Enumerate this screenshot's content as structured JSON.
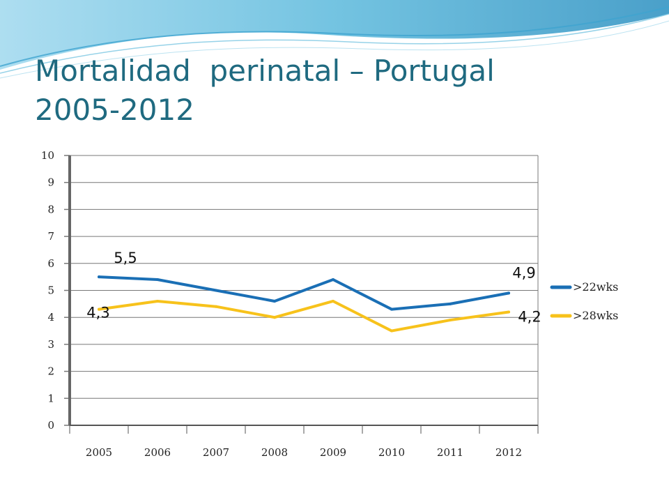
{
  "header": {
    "title_line1": "Mortalidad  perinatal – Portugal",
    "title_line2": "2005-2012"
  },
  "colors": {
    "title": "#1f6a80",
    "series1": "#1a6fb5",
    "series2": "#f7c21b"
  },
  "chart_data": {
    "type": "line",
    "x": [
      "2005",
      "2006",
      "2007",
      "2008",
      "2009",
      "2010",
      "2011",
      "2012"
    ],
    "ylim": [
      0,
      10
    ],
    "yticks": [
      "0",
      "1",
      "2",
      "3",
      "4",
      "5",
      "6",
      "7",
      "8",
      "9",
      "10"
    ],
    "grid": true,
    "legend": "right",
    "series": [
      {
        "name": ">22wks",
        "values": [
          5.5,
          5.4,
          5.0,
          4.6,
          5.4,
          4.3,
          4.5,
          4.9
        ]
      },
      {
        "name": ">28wks",
        "values": [
          4.3,
          4.6,
          4.4,
          4.0,
          4.6,
          3.5,
          3.9,
          4.2
        ]
      }
    ],
    "data_labels": [
      {
        "series": 0,
        "index": 0,
        "text": "5,5"
      },
      {
        "series": 1,
        "index": 0,
        "text": "4,3"
      },
      {
        "series": 0,
        "index": 7,
        "text": "4,9"
      },
      {
        "series": 1,
        "index": 7,
        "text": "4,2"
      }
    ]
  }
}
